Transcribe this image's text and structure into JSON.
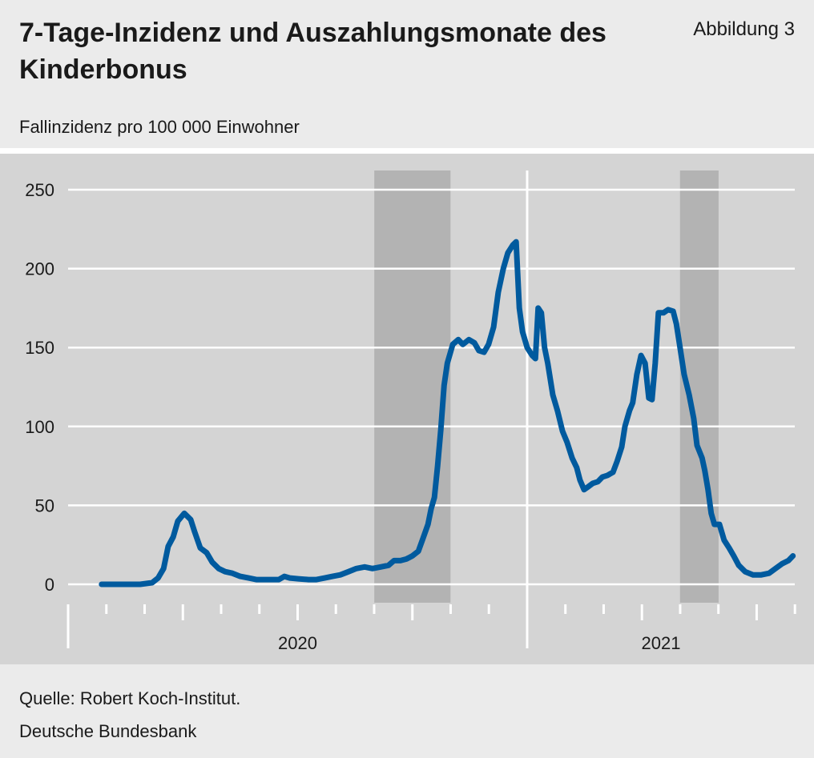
{
  "chart_data": {
    "type": "line",
    "title": "7-Tage-Inzidenz und Auszahlungsmonate des Kinderbonus",
    "figure_label": "Abbildung 3",
    "subtitle": "Fallinzidenz pro 100 000 Einwohner",
    "source": "Quelle: Robert Koch-Institut.",
    "publisher": "Deutsche Bundesbank",
    "xlim": [
      2020,
      2021.583
    ],
    "xticks": [
      {
        "value": 2020,
        "label": "2020"
      },
      {
        "value": 2021,
        "label": "2021"
      }
    ],
    "ylim": [
      0,
      250
    ],
    "yticks": [
      0,
      50,
      100,
      150,
      200,
      250
    ],
    "grid": true,
    "shaded_periods": [
      [
        2020.667,
        2020.833
      ],
      [
        2021.333,
        2021.417
      ]
    ],
    "series": [
      {
        "name": "7-Tage-Inzidenz",
        "color": "#005a9e",
        "x": [
          2020.073,
          2020.113,
          2020.157,
          2020.183,
          2020.196,
          2020.208,
          2020.218,
          2020.229,
          2020.239,
          2020.253,
          2020.267,
          2020.276,
          2020.288,
          2020.302,
          2020.314,
          2020.328,
          2020.342,
          2020.358,
          2020.375,
          2020.393,
          2020.41,
          2020.428,
          2020.445,
          2020.459,
          2020.471,
          2020.483,
          2020.501,
          2020.524,
          2020.541,
          2020.559,
          2020.576,
          2020.593,
          2020.611,
          2020.628,
          2020.646,
          2020.663,
          2020.681,
          2020.698,
          2020.71,
          2020.724,
          2020.737,
          2020.75,
          2020.763,
          2020.773,
          2020.784,
          2020.791,
          2020.798,
          2020.805,
          2020.812,
          2020.819,
          2020.826,
          2020.838,
          2020.85,
          2020.86,
          2020.873,
          2020.885,
          2020.895,
          2020.906,
          2020.916,
          2020.927,
          2020.937,
          2020.948,
          2020.958,
          2020.969,
          2020.976,
          2020.983,
          2020.99,
          2021.0,
          2021.011,
          2021.018,
          2021.024,
          2021.031,
          2021.038,
          2021.045,
          2021.056,
          2021.066,
          2021.077,
          2021.087,
          2021.098,
          2021.108,
          2021.115,
          2021.124,
          2021.134,
          2021.143,
          2021.154,
          2021.164,
          2021.175,
          2021.187,
          2021.196,
          2021.206,
          2021.213,
          2021.223,
          2021.23,
          2021.239,
          2021.248,
          2021.257,
          2021.265,
          2021.272,
          2021.279,
          2021.286,
          2021.297,
          2021.307,
          2021.318,
          2021.325,
          2021.332,
          2021.342,
          2021.353,
          2021.363,
          2021.37,
          2021.381,
          2021.387,
          2021.394,
          2021.401,
          2021.408,
          2021.419,
          2021.429,
          2021.44,
          2021.45,
          2021.461,
          2021.475,
          2021.492,
          2021.51,
          2021.527,
          2021.541,
          2021.555,
          2021.569,
          2021.579
        ],
        "values": [
          0,
          0,
          0,
          1,
          4,
          10,
          24,
          30,
          40,
          45,
          41,
          33,
          23,
          20,
          14,
          10,
          8,
          7,
          5,
          4,
          3,
          3,
          3,
          3,
          5,
          4,
          3.5,
          3,
          3,
          4,
          5,
          6,
          8,
          10,
          11,
          10,
          11,
          12,
          15,
          15,
          16,
          18,
          21,
          29,
          38,
          48,
          55,
          75,
          98,
          126,
          140,
          152,
          155,
          152,
          155,
          153,
          148,
          147,
          152,
          163,
          185,
          200,
          210,
          215,
          217,
          175,
          160,
          150,
          145,
          143,
          175,
          172,
          150,
          140,
          120,
          110,
          97,
          90,
          80,
          74,
          66,
          60,
          62,
          64,
          65,
          68,
          69,
          71,
          78,
          87,
          100,
          110,
          115,
          133,
          145,
          140,
          118,
          117,
          140,
          172,
          172,
          174,
          173,
          165,
          152,
          133,
          120,
          105,
          88,
          80,
          72,
          60,
          45,
          38,
          38,
          28,
          23,
          18,
          12,
          8,
          6,
          6,
          7,
          10,
          13,
          15,
          18
        ]
      }
    ]
  }
}
